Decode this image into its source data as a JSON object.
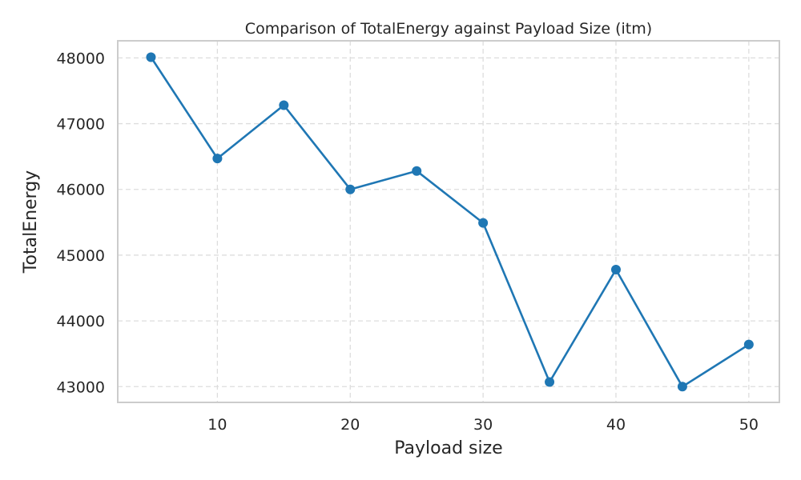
{
  "chart_data": {
    "type": "line",
    "title": "Comparison of TotalEnergy against Payload Size (itm)",
    "xlabel": "Payload size",
    "ylabel": "TotalEnergy",
    "xlim": [
      2.5,
      52.3
    ],
    "ylim": [
      42760,
      48260
    ],
    "xticks": [
      10,
      20,
      30,
      40,
      50
    ],
    "yticks": [
      43000,
      44000,
      45000,
      46000,
      47000,
      48000
    ],
    "grid": true,
    "color": "#1f77b4",
    "series": [
      {
        "x": [
          5,
          10,
          15,
          20,
          25,
          30,
          35,
          40,
          45,
          50
        ],
        "y": [
          48010,
          46470,
          47280,
          46000,
          46280,
          45490,
          43070,
          44780,
          43000,
          43640
        ]
      }
    ]
  }
}
